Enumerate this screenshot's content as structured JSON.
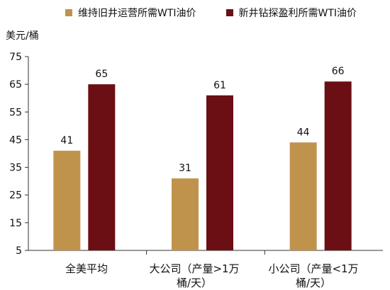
{
  "chart_data": {
    "type": "bar",
    "unit_label": "美元/桶",
    "categories": [
      "全美平均",
      "大公司（产量>1万桶/天）",
      "小公司（产量<1万桶/天）"
    ],
    "series": [
      {
        "name": "维持旧井运营所需WTI油价",
        "values": [
          41,
          31,
          44
        ],
        "color": "#c0934d"
      },
      {
        "name": "新井钻探盈利所需WTI油价",
        "values": [
          65,
          61,
          66
        ],
        "color": "#6b0f14"
      }
    ],
    "y_ticks": [
      5,
      15,
      25,
      35,
      45,
      55,
      65,
      75
    ],
    "ylim": [
      5,
      75
    ],
    "legend_position": "top",
    "grid": false
  }
}
